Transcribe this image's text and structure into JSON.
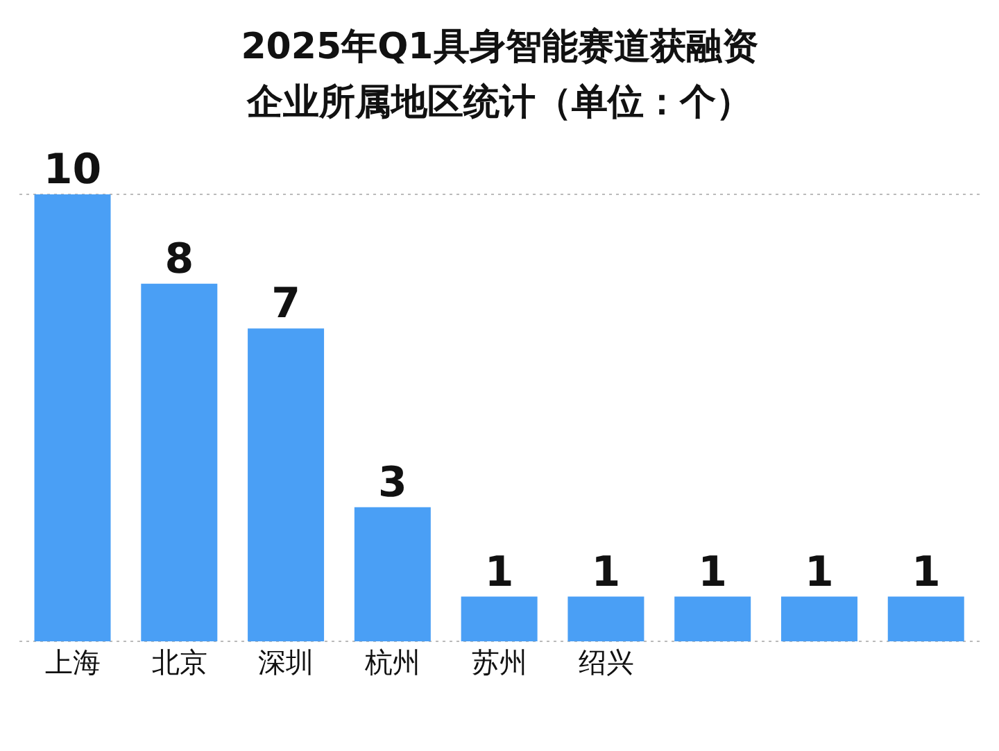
{
  "chart_data": {
    "type": "bar",
    "title": "2025年Q1具身智能赛道获融资企业所属地区统计（单位：个）",
    "categories": [
      "上海",
      "北京",
      "深圳",
      "杭州",
      "苏州",
      "绍兴",
      null,
      null,
      null
    ],
    "values": [
      10,
      8,
      7,
      3,
      1,
      1,
      1,
      1,
      1
    ],
    "color": "#4a9ff5",
    "tick_labels": "x",
    "grid": "y",
    "data_labels": true
  }
}
